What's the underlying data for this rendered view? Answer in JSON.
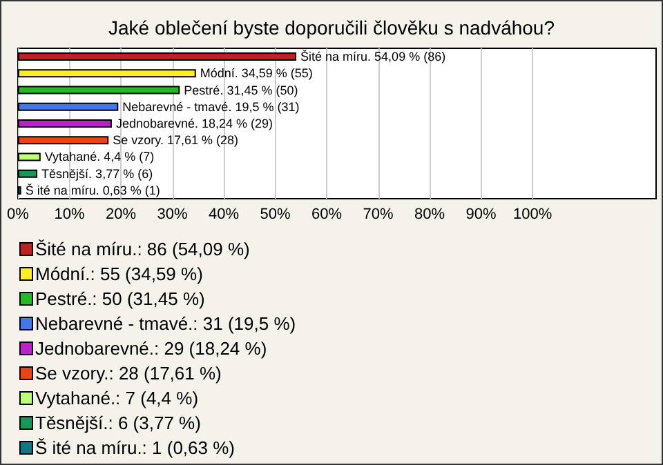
{
  "chart_data": {
    "type": "bar",
    "orientation": "horizontal",
    "title": "Jaké oblečení byste doporučili člověku s nadváhou?",
    "categories": [
      null,
      null,
      null,
      null,
      null,
      null,
      null,
      null,
      null
    ],
    "series": [
      {
        "name": "Šité na míru.: 86 (54,09 %)",
        "color": "#c0201f",
        "values": [
          54.09,
          null,
          null,
          null,
          null,
          null,
          null,
          null,
          null
        ],
        "value_labels": [
          "Šité na míru. 54,09 % (86)",
          null,
          null,
          null,
          null,
          null,
          null,
          null,
          null
        ]
      },
      {
        "name": "Módní.: 55 (34,59 %)",
        "color": "#ffee22",
        "values": [
          null,
          34.59,
          null,
          null,
          null,
          null,
          null,
          null,
          null
        ],
        "value_labels": [
          null,
          "Módní. 34,59 % (55)",
          null,
          null,
          null,
          null,
          null,
          null,
          null
        ]
      },
      {
        "name": "Pestré.: 50 (31,45 %)",
        "color": "#22bb22",
        "values": [
          null,
          null,
          31.45,
          null,
          null,
          null,
          null,
          null,
          null
        ],
        "value_labels": [
          null,
          null,
          "Pestré. 31,45 % (50)",
          null,
          null,
          null,
          null,
          null,
          null
        ]
      },
      {
        "name": "Nebarevné - tmavé.: 31 (19,5 %)",
        "color": "#4477ee",
        "values": [
          null,
          null,
          null,
          19.5,
          null,
          null,
          null,
          null,
          null
        ],
        "value_labels": [
          null,
          null,
          null,
          "Nebarevné - tmavé. 19,5 % (31)",
          null,
          null,
          null,
          null,
          null
        ]
      },
      {
        "name": "Jednobarevné.: 29 (18,24 %)",
        "color": "#bb22cc",
        "values": [
          null,
          null,
          null,
          null,
          18.24,
          null,
          null,
          null,
          null
        ],
        "value_labels": [
          null,
          null,
          null,
          null,
          "Jednobarevné. 18,24 % (29)",
          null,
          null,
          null,
          null
        ]
      },
      {
        "name": "Se vzory.: 28 (17,61 %)",
        "color": "#ee4411",
        "values": [
          null,
          null,
          null,
          null,
          null,
          17.61,
          null,
          null,
          null
        ],
        "value_labels": [
          null,
          null,
          null,
          null,
          null,
          "Se vzory. 17,61 % (28)",
          null,
          null,
          null
        ]
      },
      {
        "name": "Vytahané.: 7 (4,4 %)",
        "color": "#bbff77",
        "values": [
          null,
          null,
          null,
          null,
          null,
          null,
          4.4,
          null,
          null
        ],
        "value_labels": [
          null,
          null,
          null,
          null,
          null,
          null,
          "Vytahané. 4,4 % (7)",
          null,
          null
        ]
      },
      {
        "name": "Těsnější.: 6 (3,77 %)",
        "color": "#119955",
        "values": [
          null,
          null,
          null,
          null,
          null,
          null,
          null,
          3.77,
          null
        ],
        "value_labels": [
          null,
          null,
          null,
          null,
          null,
          null,
          null,
          "Těsnější. 3,77 % (6)",
          null
        ]
      },
      {
        "name": "Š ité na míru.: 1 (0,63 %)",
        "color": "#117788",
        "values": [
          null,
          null,
          null,
          null,
          null,
          null,
          null,
          null,
          0.63
        ],
        "value_labels": [
          null,
          null,
          null,
          null,
          null,
          null,
          null,
          null,
          "Š ité na míru. 0,63 % (1)"
        ]
      }
    ],
    "xlim": [
      0,
      124
    ],
    "xticks": [
      {
        "value": 0,
        "label": "0%"
      },
      {
        "value": 10,
        "label": "10%"
      },
      {
        "value": 20,
        "label": "20%"
      },
      {
        "value": 30,
        "label": "30%"
      },
      {
        "value": 40,
        "label": "40%"
      },
      {
        "value": 50,
        "label": "50%"
      },
      {
        "value": 60,
        "label": "60%"
      },
      {
        "value": 70,
        "label": "70%"
      },
      {
        "value": 80,
        "label": "80%"
      },
      {
        "value": 90,
        "label": "90%"
      },
      {
        "value": 100,
        "label": "100%"
      }
    ],
    "grid": "x",
    "legend": "bottom"
  }
}
